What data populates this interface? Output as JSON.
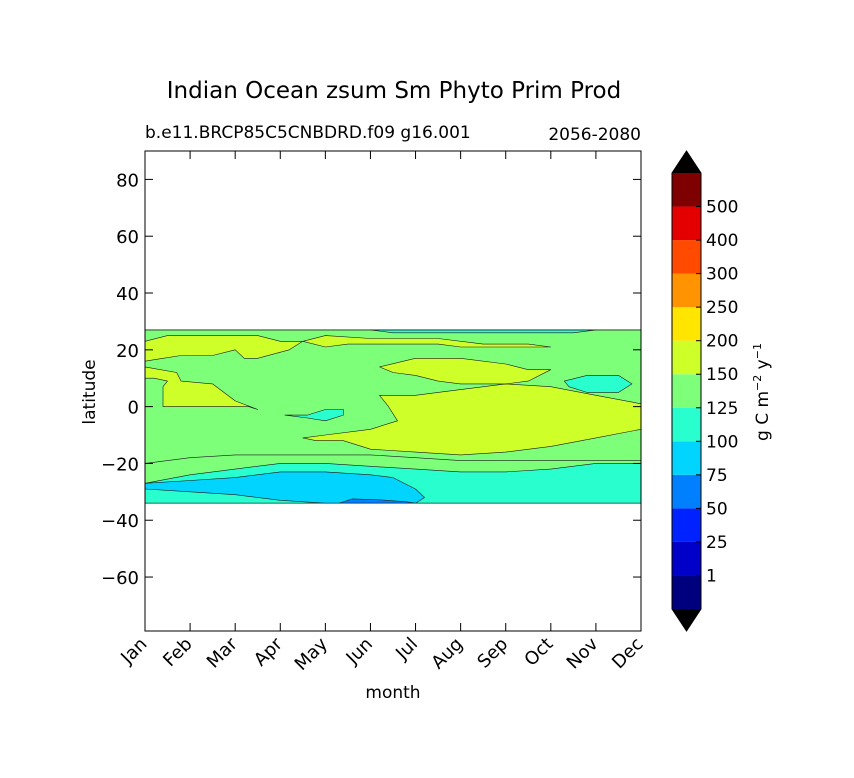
{
  "chart_data": {
    "type": "contourf",
    "title": "Indian Ocean zsum Sm Phyto Prim Prod",
    "subtitle_left": "b.e11.BRCP85C5CNBDRD.f09 g16.001",
    "subtitle_right": "2056-2080",
    "xlabel": "month",
    "ylabel": "latitude",
    "x_ticks": [
      "Jan",
      "Feb",
      "Mar",
      "Apr",
      "May",
      "Jun",
      "Jul",
      "Aug",
      "Sep",
      "Oct",
      "Nov",
      "Dec"
    ],
    "xlim": [
      0,
      11
    ],
    "y_ticks": [
      80,
      60,
      40,
      20,
      0,
      -20,
      -40,
      -60
    ],
    "y_tick_labels": [
      "80",
      "60",
      "40",
      "20",
      "0",
      "−20",
      "−40",
      "−60"
    ],
    "ylim": [
      -79,
      90
    ],
    "data_lat_range": [
      -34,
      27
    ],
    "colorbar": {
      "label_main": "g C m",
      "label_exp1": "−2",
      "label_mid": " y",
      "label_exp2": "−1",
      "levels": [
        "1",
        "25",
        "50",
        "75",
        "100",
        "125",
        "150",
        "200",
        "250",
        "300",
        "400",
        "500"
      ],
      "colors": [
        "#00007f",
        "#0000c8",
        "#0022ff",
        "#0080ff",
        "#00d4ff",
        "#29ffce",
        "#7dff7a",
        "#ceff29",
        "#ffe500",
        "#ff9400",
        "#ff4a00",
        "#e40000",
        "#7f0000"
      ],
      "extend_min_color": "#000000",
      "extend_max_color": "#000000"
    },
    "regions": [
      {
        "level": "100-125",
        "color": "#29ffce",
        "polygon": [
          [
            0,
            -27
          ],
          [
            1,
            -24
          ],
          [
            2,
            -22
          ],
          [
            3,
            -20
          ],
          [
            4,
            -20
          ],
          [
            5,
            -21
          ],
          [
            6,
            -22
          ],
          [
            7,
            -23
          ],
          [
            8,
            -23
          ],
          [
            9,
            -22
          ],
          [
            10,
            -20
          ],
          [
            11,
            -20
          ],
          [
            11,
            -34
          ],
          [
            0,
            -34
          ]
        ]
      },
      {
        "level": "125-150",
        "color": "#7dff7a",
        "polygon": [
          [
            0,
            -20
          ],
          [
            1,
            -18
          ],
          [
            2,
            -17
          ],
          [
            3,
            -17
          ],
          [
            4,
            -17
          ],
          [
            5,
            -17
          ],
          [
            6,
            -18
          ],
          [
            7,
            -19
          ],
          [
            8,
            -19
          ],
          [
            9,
            -19
          ],
          [
            10,
            -19
          ],
          [
            11,
            -19
          ],
          [
            11,
            27
          ],
          [
            0,
            27
          ]
        ]
      },
      {
        "level": "150-200",
        "color": "#ceff29",
        "polygon": [
          [
            0,
            14
          ],
          [
            0.7,
            12
          ],
          [
            0.8,
            9
          ],
          [
            1.5,
            8
          ],
          [
            2,
            2
          ],
          [
            2.5,
            -1
          ],
          [
            2.3,
            0
          ],
          [
            1.5,
            0
          ],
          [
            0.4,
            0
          ],
          [
            0.4,
            7
          ],
          [
            0.5,
            9
          ],
          [
            0.2,
            10
          ],
          [
            0,
            10
          ],
          [
            0,
            14
          ]
        ]
      },
      {
        "level": "150-200",
        "color": "#ceff29",
        "polygon": [
          [
            0,
            23
          ],
          [
            0.5,
            25
          ],
          [
            1.5,
            25
          ],
          [
            2.5,
            25
          ],
          [
            3,
            23
          ],
          [
            3.5,
            23
          ],
          [
            3.2,
            20
          ],
          [
            2.5,
            17
          ],
          [
            2.2,
            17
          ],
          [
            2,
            20
          ],
          [
            1.5,
            18
          ],
          [
            0.8,
            18
          ],
          [
            0.4,
            17
          ],
          [
            0,
            16
          ]
        ]
      },
      {
        "level": "150-200",
        "color": "#ceff29",
        "polygon": [
          [
            3.5,
            23
          ],
          [
            4,
            25
          ],
          [
            5,
            24
          ],
          [
            6,
            24
          ],
          [
            6.5,
            24
          ],
          [
            7.5,
            22
          ],
          [
            8.5,
            22
          ],
          [
            9,
            21
          ],
          [
            8,
            21
          ],
          [
            7,
            21
          ],
          [
            6.5,
            22
          ],
          [
            5.5,
            22
          ],
          [
            4.5,
            22
          ],
          [
            4,
            21
          ]
        ]
      },
      {
        "level": "150-200",
        "color": "#ceff29",
        "polygon": [
          [
            5.2,
            4
          ],
          [
            6,
            4
          ],
          [
            7,
            6
          ],
          [
            8,
            8
          ],
          [
            9,
            7
          ],
          [
            10,
            4
          ],
          [
            11,
            1
          ],
          [
            11,
            -8
          ],
          [
            10,
            -11
          ],
          [
            9,
            -14
          ],
          [
            8,
            -16
          ],
          [
            7,
            -17
          ],
          [
            6,
            -16
          ],
          [
            5,
            -15
          ],
          [
            4.4,
            -12
          ],
          [
            3.8,
            -12
          ],
          [
            3.5,
            -11
          ],
          [
            4,
            -10
          ],
          [
            5,
            -8
          ],
          [
            5.6,
            -5
          ],
          [
            5.4,
            0
          ]
        ]
      },
      {
        "level": "150-200",
        "color": "#ceff29",
        "polygon": [
          [
            5.2,
            14
          ],
          [
            6,
            17
          ],
          [
            7,
            17
          ],
          [
            8,
            15
          ],
          [
            8.5,
            13
          ],
          [
            9,
            13
          ],
          [
            8.5,
            9
          ],
          [
            8,
            8
          ],
          [
            7,
            8
          ],
          [
            6.5,
            9
          ],
          [
            6,
            11
          ],
          [
            5.5,
            12
          ]
        ]
      },
      {
        "level": "100-125",
        "color": "#29ffce",
        "polygon": [
          [
            3.1,
            -3
          ],
          [
            3.6,
            -3
          ],
          [
            4,
            -1
          ],
          [
            4.4,
            -1
          ],
          [
            4.4,
            -3
          ],
          [
            4,
            -5
          ],
          [
            3.6,
            -4
          ]
        ]
      },
      {
        "level": "100-125",
        "color": "#29ffce",
        "polygon": [
          [
            9.3,
            9
          ],
          [
            9.8,
            11
          ],
          [
            10.5,
            11
          ],
          [
            10.8,
            8
          ],
          [
            10.5,
            5
          ],
          [
            9.8,
            5
          ],
          [
            9.4,
            7
          ]
        ]
      },
      {
        "level": "100-125",
        "color": "#29ffce",
        "polygon": [
          [
            5,
            27
          ],
          [
            5.5,
            26
          ],
          [
            7,
            26
          ],
          [
            8.5,
            26
          ],
          [
            9.5,
            26
          ],
          [
            10,
            27
          ]
        ]
      },
      {
        "level": "75-100",
        "color": "#00d4ff",
        "polygon": [
          [
            0,
            -29
          ],
          [
            1,
            -30
          ],
          [
            2,
            -31
          ],
          [
            3,
            -33
          ],
          [
            4,
            -34
          ],
          [
            6,
            -34
          ],
          [
            6.2,
            -32
          ],
          [
            6,
            -29
          ],
          [
            5.5,
            -25
          ],
          [
            5,
            -24
          ],
          [
            4,
            -23
          ],
          [
            3,
            -23
          ],
          [
            2,
            -25
          ],
          [
            1,
            -26
          ],
          [
            0,
            -27
          ]
        ]
      },
      {
        "level": "50-75",
        "color": "#0080ff",
        "polygon": [
          [
            4.3,
            -34
          ],
          [
            4.6,
            -32.5
          ],
          [
            5.2,
            -32.8
          ],
          [
            5.8,
            -33.5
          ],
          [
            6,
            -34
          ]
        ]
      }
    ]
  }
}
